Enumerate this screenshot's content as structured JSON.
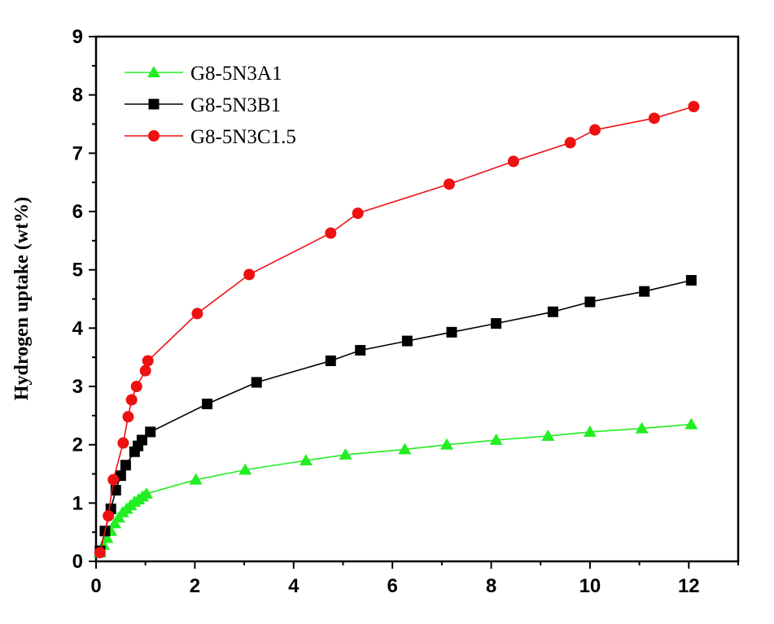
{
  "chart_data": {
    "type": "line",
    "title": "",
    "xlabel": "",
    "ylabel": "Hydrogen uptake (wt%)",
    "xlim": [
      0,
      13
    ],
    "ylim": [
      0,
      9
    ],
    "xticks": [
      0,
      2,
      4,
      6,
      8,
      10,
      12
    ],
    "yticks": [
      0,
      1,
      2,
      3,
      4,
      5,
      6,
      7,
      8,
      9
    ],
    "grid": false,
    "legend_position": "top-left",
    "series": [
      {
        "name": "G8-5N3A1",
        "color": "#22ee22",
        "marker": "triangle",
        "points": [
          [
            0.08,
            0.15
          ],
          [
            0.15,
            0.28
          ],
          [
            0.22,
            0.4
          ],
          [
            0.3,
            0.52
          ],
          [
            0.38,
            0.65
          ],
          [
            0.46,
            0.75
          ],
          [
            0.54,
            0.84
          ],
          [
            0.62,
            0.9
          ],
          [
            0.7,
            0.96
          ],
          [
            0.78,
            1.02
          ],
          [
            0.86,
            1.06
          ],
          [
            0.94,
            1.11
          ],
          [
            1.02,
            1.16
          ],
          [
            2.02,
            1.4
          ],
          [
            3.02,
            1.57
          ],
          [
            4.25,
            1.73
          ],
          [
            5.05,
            1.83
          ],
          [
            6.25,
            1.92
          ],
          [
            7.1,
            2.0
          ],
          [
            8.1,
            2.08
          ],
          [
            9.15,
            2.15
          ],
          [
            10.0,
            2.22
          ],
          [
            11.05,
            2.28
          ],
          [
            12.05,
            2.35
          ]
        ]
      },
      {
        "name": "G8-5N3B1",
        "color": "#000000",
        "marker": "square",
        "points": [
          [
            0.08,
            0.18
          ],
          [
            0.18,
            0.52
          ],
          [
            0.3,
            0.9
          ],
          [
            0.4,
            1.22
          ],
          [
            0.5,
            1.47
          ],
          [
            0.6,
            1.65
          ],
          [
            0.78,
            1.88
          ],
          [
            0.85,
            1.98
          ],
          [
            0.93,
            2.08
          ],
          [
            1.1,
            2.22
          ],
          [
            2.25,
            2.7
          ],
          [
            3.25,
            3.07
          ],
          [
            4.75,
            3.44
          ],
          [
            5.35,
            3.62
          ],
          [
            6.3,
            3.78
          ],
          [
            7.2,
            3.93
          ],
          [
            8.1,
            4.08
          ],
          [
            9.25,
            4.28
          ],
          [
            10.0,
            4.45
          ],
          [
            11.1,
            4.63
          ],
          [
            12.05,
            4.82
          ]
        ]
      },
      {
        "name": "G8-5N3C1.5",
        "color": "#ee1111",
        "marker": "circle",
        "points": [
          [
            0.08,
            0.15
          ],
          [
            0.25,
            0.78
          ],
          [
            0.35,
            1.4
          ],
          [
            0.55,
            2.03
          ],
          [
            0.65,
            2.48
          ],
          [
            0.72,
            2.77
          ],
          [
            0.82,
            3.0
          ],
          [
            1.0,
            3.27
          ],
          [
            1.05,
            3.44
          ],
          [
            2.05,
            4.25
          ],
          [
            3.1,
            4.92
          ],
          [
            4.75,
            5.63
          ],
          [
            5.3,
            5.97
          ],
          [
            7.15,
            6.47
          ],
          [
            8.45,
            6.86
          ],
          [
            9.6,
            7.18
          ],
          [
            10.1,
            7.4
          ],
          [
            11.3,
            7.6
          ],
          [
            12.1,
            7.8
          ]
        ]
      }
    ]
  }
}
